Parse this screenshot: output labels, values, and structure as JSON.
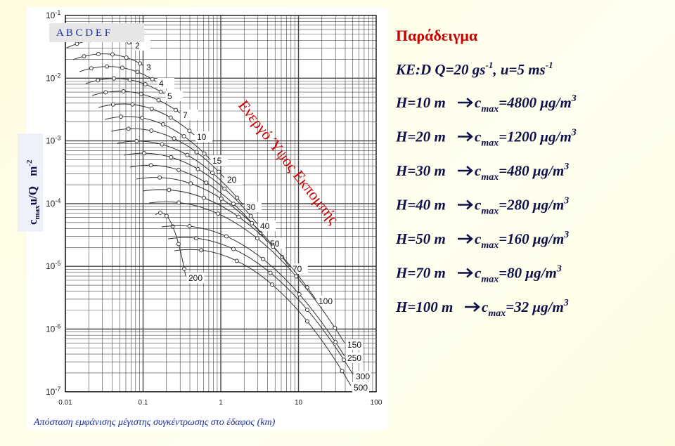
{
  "legend_box": "A B C D E F",
  "y_label": {
    "c": "c",
    "sub": "max",
    "rest": "u/Q",
    "unit": "m",
    "unit_sup": "-2"
  },
  "y_ticks": [
    {
      "base": "10",
      "exp": "-1"
    },
    {
      "base": "10",
      "exp": "-2"
    },
    {
      "base": "10",
      "exp": "-3"
    },
    {
      "base": "10",
      "exp": "-4"
    },
    {
      "base": "10",
      "exp": "-5"
    },
    {
      "base": "10",
      "exp": "-6"
    },
    {
      "base": "10",
      "exp": "-7"
    }
  ],
  "x_ticks": [
    "0.01",
    "0.1",
    "1",
    "10",
    "100"
  ],
  "x_label": "Απόσταση εμφάνισης μέγιστης συγκέντρωσης στο έδαφος (km)",
  "curve_labels": [
    "2",
    "3",
    "4",
    "5",
    "7",
    "10",
    "15",
    "20",
    "30",
    "40",
    "50",
    "70",
    "100",
    "150",
    "200",
    "250",
    "300",
    "500"
  ],
  "diagonal_label": "Ενεργό Ύψος Εκπομπής",
  "example": {
    "title": "Παράδειγμα",
    "conditions": {
      "text": "KE:D Q=20 gs",
      "sup1": "-1",
      "mid": ", u=5 ms",
      "sup2": "-1"
    },
    "rows": [
      {
        "h": "H=10 m",
        "c": "c",
        "sub": "max",
        "val": "=4800 μg/m",
        "sup": "3"
      },
      {
        "h": "H=20 m",
        "c": "c",
        "sub": "max",
        "val": "=1200 μg/m",
        "sup": "3"
      },
      {
        "h": "H=30 m",
        "c": "c",
        "sub": "max",
        "val": "=480 μg/m",
        "sup": "3"
      },
      {
        "h": "H=40 m",
        "c": "c",
        "sub": "max",
        "val": "=280 μg/m",
        "sup": "3"
      },
      {
        "h": "H=50 m",
        "c": "c",
        "sub": "max",
        "val": "=160 μg/m",
        "sup": "3"
      },
      {
        "h": "H=70 m",
        "c": "c",
        "sub": "max",
        "val": "=80 μg/m",
        "sup": "3"
      },
      {
        "h": "H=100 m",
        "c": "c",
        "sub": "max",
        "val": "=32 μg/m",
        "sup": "3"
      }
    ]
  }
}
